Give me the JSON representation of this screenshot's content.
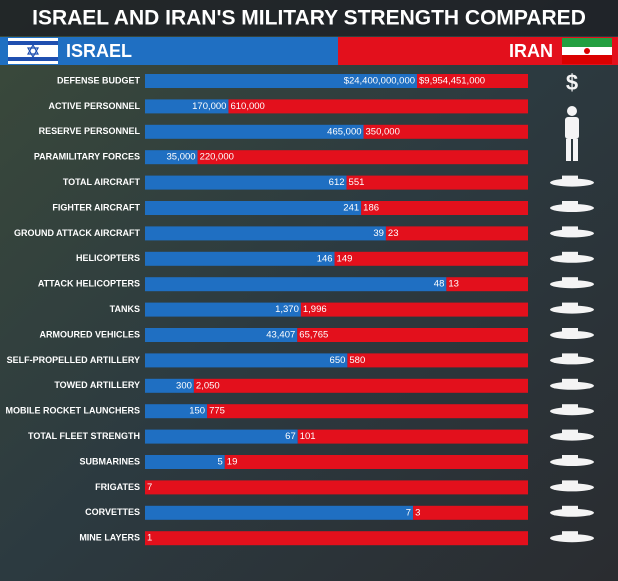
{
  "chart_data": {
    "type": "split",
    "title": "ISRAEL AND IRAN'S MILITARY STRENGTH COMPARED",
    "categories": [
      "DEFENSE BUDGET",
      "ACTIVE PERSONNEL",
      "RESERVE PERSONNEL",
      "PARAMILITARY FORCES",
      "TOTAL AIRCRAFT",
      "FIGHTER AIRCRAFT",
      "GROUND ATTACK AIRCRAFT",
      "HELICOPTERS",
      "ATTACK HELICOPTERS",
      "TANKS",
      "ARMOURED VEHICLES",
      "SELF-PROPELLED ARTILLERY",
      "TOWED ARTILLERY",
      "MOBILE ROCKET LAUNCHERS",
      "TOTAL FLEET STRENGTH",
      "SUBMARINES",
      "FRIGATES",
      "CORVETTES",
      "MINE LAYERS"
    ],
    "series": [
      {
        "name": "ISRAEL",
        "color": "#1f6fc2",
        "values": [
          24400000000,
          170000,
          465000,
          35000,
          612,
          241,
          39,
          146,
          48,
          1370,
          43407,
          650,
          300,
          150,
          67,
          5,
          0,
          7,
          0
        ],
        "value_labels": [
          "$24,400,000,000",
          "170,000",
          "465,000",
          "35,000",
          "612",
          "241",
          "39",
          "146",
          "48",
          "1,370",
          "43,407",
          "650",
          "300",
          "150",
          "67",
          "5",
          null,
          "7",
          null
        ]
      },
      {
        "name": "IRAN",
        "color": "#e3101c",
        "values": [
          9954451000,
          610000,
          350000,
          220000,
          551,
          186,
          23,
          149,
          13,
          1996,
          65765,
          580,
          2050,
          775,
          101,
          19,
          7,
          3,
          1
        ],
        "value_labels": [
          "$9,954,451,000",
          "610,000",
          "350,000",
          "220,000",
          "551",
          "186",
          "23",
          "149",
          "13",
          "1,996",
          "65,765",
          "580",
          "2,050",
          "775",
          "101",
          "19",
          "7",
          "3",
          "1"
        ]
      }
    ]
  }
}
